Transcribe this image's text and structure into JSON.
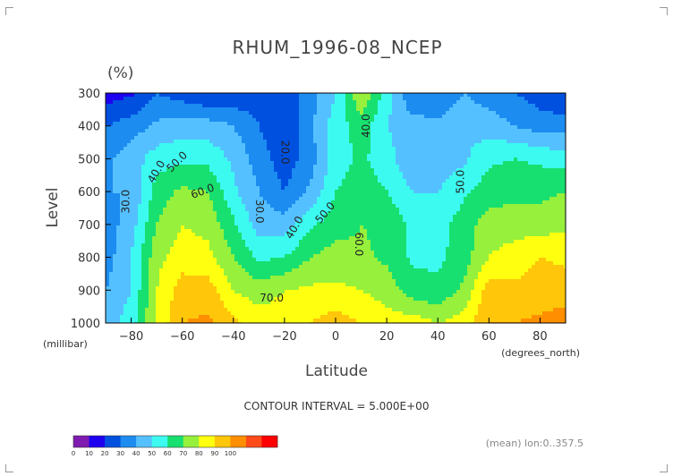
{
  "chart_data": {
    "type": "heatmap",
    "title": "RHUM_1996-08_NCEP",
    "unit_label": "(%)",
    "xlabel": "Latitude",
    "ylabel": "Level",
    "x_unit": "(degrees_north)",
    "y_unit": "(millibar)",
    "xlim": [
      -90,
      90
    ],
    "ylim": [
      1000,
      300
    ],
    "x_ticks": [
      -80,
      -60,
      -40,
      -20,
      0,
      20,
      40,
      60,
      80
    ],
    "x_tick_labels": [
      "−80",
      "−60",
      "−40",
      "−20",
      "0",
      "20",
      "40",
      "60",
      "80"
    ],
    "y_ticks": [
      300,
      400,
      500,
      600,
      700,
      800,
      900,
      1000
    ],
    "y_tick_labels": [
      "300",
      "400",
      "500",
      "600",
      "700",
      "800",
      "900",
      "1000"
    ],
    "levels": [
      300,
      400,
      500,
      600,
      700,
      800,
      900,
      1000
    ],
    "latitudes": [
      -90,
      -80,
      -70,
      -60,
      -50,
      -40,
      -30,
      -20,
      -10,
      0,
      10,
      20,
      30,
      40,
      50,
      60,
      70,
      80,
      90
    ],
    "values": [
      [
        5,
        8,
        20,
        15,
        10,
        12,
        15,
        15,
        25,
        40,
        70,
        45,
        20,
        20,
        30,
        25,
        20,
        15,
        10
      ],
      [
        20,
        25,
        32,
        35,
        35,
        30,
        20,
        12,
        28,
        45,
        55,
        40,
        35,
        33,
        38,
        35,
        30,
        25,
        25
      ],
      [
        28,
        35,
        45,
        48,
        47,
        38,
        25,
        14,
        25,
        45,
        52,
        45,
        30,
        32,
        38,
        48,
        50,
        48,
        45
      ],
      [
        30,
        30,
        55,
        62,
        60,
        42,
        30,
        20,
        32,
        50,
        55,
        50,
        40,
        40,
        48,
        55,
        57,
        57,
        60
      ],
      [
        25,
        35,
        60,
        70,
        67,
        52,
        35,
        35,
        48,
        55,
        60,
        58,
        48,
        45,
        55,
        65,
        65,
        65,
        68
      ],
      [
        25,
        40,
        67,
        75,
        73,
        60,
        48,
        50,
        60,
        65,
        62,
        58,
        48,
        48,
        55,
        70,
        75,
        80,
        78
      ],
      [
        30,
        40,
        70,
        85,
        85,
        70,
        65,
        70,
        72,
        72,
        70,
        65,
        55,
        52,
        62,
        85,
        82,
        85,
        85
      ],
      [
        35,
        45,
        72,
        90,
        92,
        82,
        75,
        75,
        80,
        85,
        80,
        75,
        75,
        70,
        75,
        90,
        90,
        92,
        95
      ]
    ],
    "contour_interval_text": "CONTOUR INTERVAL = 5.000E+00",
    "contour_labels": [
      "30.0",
      "40.0",
      "50.0",
      "60.0",
      "20.0",
      "30.0",
      "40.0",
      "50.0",
      "70.0",
      "40.0",
      "60.0",
      "50.0"
    ],
    "colorbar": {
      "ticks": [
        "0",
        "10",
        "20",
        "30",
        "40",
        "50",
        "60",
        "70",
        "80",
        "90",
        "100"
      ],
      "colors": [
        "#7f1bb0",
        "#1e00f0",
        "#0050e0",
        "#1c8cf0",
        "#55c0ff",
        "#3cfaf0",
        "#18e070",
        "#96f03c",
        "#ffff10",
        "#ffc60a",
        "#ff8e00",
        "#ff4a1a",
        "#ff0000"
      ],
      "color_thresholds": [
        0,
        10,
        20,
        30,
        40,
        50,
        60,
        70,
        80,
        90,
        100
      ]
    },
    "footer_text": "(mean) lon:0..357.5",
    "grid": false
  }
}
